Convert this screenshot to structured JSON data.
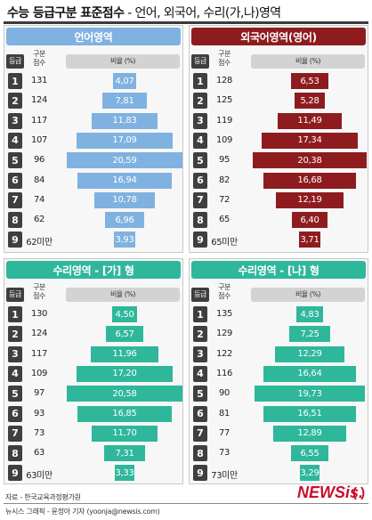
{
  "header": {
    "title_bold": "수능 등급구분 표준점수",
    "title_sep": " - ",
    "title_light": "언어, 외국어, 수리(가,나)영역"
  },
  "column_headers": {
    "grade": "등급",
    "score_line1": "구분",
    "score_line2": "점수",
    "ratio": "비율 (%)"
  },
  "colors": {
    "language": "#7fb2e0",
    "foreign": "#8e1c1f",
    "math": "#2fb79b",
    "title_language": "#7fb2e0",
    "title_foreign": "#8e1c1f",
    "title_math": "#2fb79b"
  },
  "chart_data": [
    {
      "type": "bar",
      "title": "언어영역",
      "color_key": "language",
      "grades": [
        "1",
        "2",
        "3",
        "4",
        "5",
        "6",
        "7",
        "8",
        "9"
      ],
      "scores": [
        "131",
        "124",
        "117",
        "107",
        "96",
        "84",
        "74",
        "62",
        "62미만"
      ],
      "values": [
        4.07,
        7.81,
        11.83,
        17.09,
        20.59,
        16.94,
        10.78,
        6.96,
        3.93
      ],
      "labels": [
        "4,07",
        "7,81",
        "11,83",
        "17,09",
        "20,59",
        "16,94",
        "10,78",
        "6,96",
        "3,93"
      ],
      "ylabel": "비율 (%)"
    },
    {
      "type": "bar",
      "title": "외국어영역(영어)",
      "color_key": "foreign",
      "grades": [
        "1",
        "2",
        "3",
        "4",
        "5",
        "6",
        "7",
        "8",
        "9"
      ],
      "scores": [
        "128",
        "125",
        "119",
        "109",
        "95",
        "82",
        "72",
        "65",
        "65미만"
      ],
      "values": [
        6.53,
        5.28,
        11.49,
        17.34,
        20.38,
        16.68,
        12.19,
        6.4,
        3.71
      ],
      "labels": [
        "6,53",
        "5,28",
        "11,49",
        "17,34",
        "20,38",
        "16,68",
        "12,19",
        "6,40",
        "3,71"
      ],
      "ylabel": "비율 (%)"
    },
    {
      "type": "bar",
      "title": "수리영역 - [가] 형",
      "color_key": "math",
      "grades": [
        "1",
        "2",
        "3",
        "4",
        "5",
        "6",
        "7",
        "8",
        "9"
      ],
      "scores": [
        "130",
        "124",
        "117",
        "109",
        "97",
        "93",
        "73",
        "63",
        "63미만"
      ],
      "values": [
        4.5,
        6.57,
        11.96,
        17.2,
        20.58,
        16.85,
        11.7,
        7.31,
        3.33
      ],
      "labels": [
        "4,50",
        "6,57",
        "11,96",
        "17,20",
        "20,58",
        "16,85",
        "11,70",
        "7,31",
        "3,33"
      ],
      "ylabel": "비율 (%)"
    },
    {
      "type": "bar",
      "title": "수리영역 - [나] 형",
      "color_key": "math",
      "grades": [
        "1",
        "2",
        "3",
        "4",
        "5",
        "6",
        "7",
        "8",
        "9"
      ],
      "scores": [
        "135",
        "129",
        "122",
        "116",
        "90",
        "81",
        "77",
        "73",
        "73미만"
      ],
      "values": [
        4.83,
        7.25,
        12.29,
        16.64,
        19.73,
        16.51,
        12.89,
        6.55,
        3.29
      ],
      "labels": [
        "4,83",
        "7,25",
        "12,29",
        "16,64",
        "19,73",
        "16,51",
        "12,89",
        "6,55",
        "3,29"
      ],
      "ylabel": "비율 (%)"
    }
  ],
  "footer": {
    "source": "자료 - 한국교육과정평가원",
    "credit": "뉴시스 그래픽 - 윤정아 기자 (yoonja@newsis.com)",
    "logo_text": "NEWSis."
  }
}
